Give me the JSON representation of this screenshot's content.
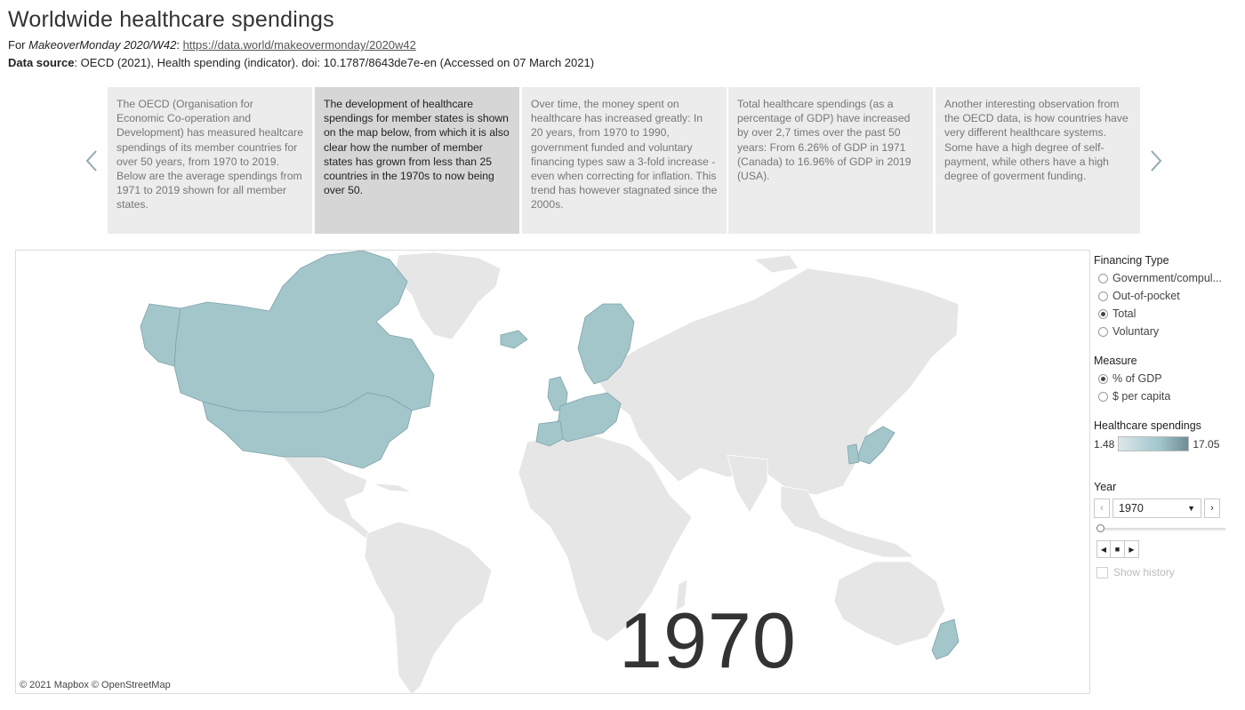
{
  "header": {
    "title": "Worldwide healthcare spendings",
    "for_prefix": "For ",
    "for_italic": "MakeoverMonday 2020/W42",
    "for_colon": ": ",
    "link": "https://data.world/makeovermonday/2020w42",
    "source_label": "Data source",
    "source_text": ": OECD (2021), Health spending (indicator). doi: 10.1787/8643de7e-en (Accessed on 07 March 2021)"
  },
  "carousel": {
    "prev_icon": "chevron-left-icon",
    "next_icon": "chevron-right-icon",
    "active_index": 1,
    "cards": [
      "The OECD (Organisation for Economic Co-operation and Development) has measured healtcare spendings of its member countries for over 50 years, from 1970 to 2019. Below are the average spendings from 1971 to 2019 shown for all member states.",
      "The development of healthcare spendings for member states is shown on the map below, from which it is also clear how the number of member states has grown from less than 25 countries in the 1970s to now being over 50.",
      "Over time, the money spent on healthcare has increased greatly: In 20 years, from 1970 to 1990, government funded and voluntary financing types saw a 3-fold increase - even when correcting for inflation. This trend has however stagnated since the 2000s.",
      "Total healthcare spendings (as a percentage of GDP) have increased by over 2,7 times over the past 50 years: From 6.26% of GDP in 1971 (Canada) to 16.96% of GDP in 2019 (USA).",
      "Another interesting observation from the OECD data, is how countries have very different healthcare systems. Some have a high degree of self-payment, while others have a high degree of goverment funding."
    ]
  },
  "map": {
    "year_overlay": "1970",
    "attribution": "© 2021 Mapbox  © OpenStreetMap",
    "highlight_color": "#a3c6cb",
    "base_color": "#e6e6e6"
  },
  "filters": {
    "financing_title": "Financing Type",
    "financing_options": [
      {
        "label": "Government/compul...",
        "selected": false
      },
      {
        "label": "Out-of-pocket",
        "selected": false
      },
      {
        "label": "Total",
        "selected": true
      },
      {
        "label": "Voluntary",
        "selected": false
      }
    ],
    "measure_title": "Measure",
    "measure_options": [
      {
        "label": "% of GDP",
        "selected": true
      },
      {
        "label": "$ per capita",
        "selected": false
      }
    ],
    "legend_title": "Healthcare spendings",
    "legend_min": "1.48",
    "legend_max": "17.05",
    "year_title": "Year",
    "year_value": "1970",
    "show_history": "Show history"
  }
}
